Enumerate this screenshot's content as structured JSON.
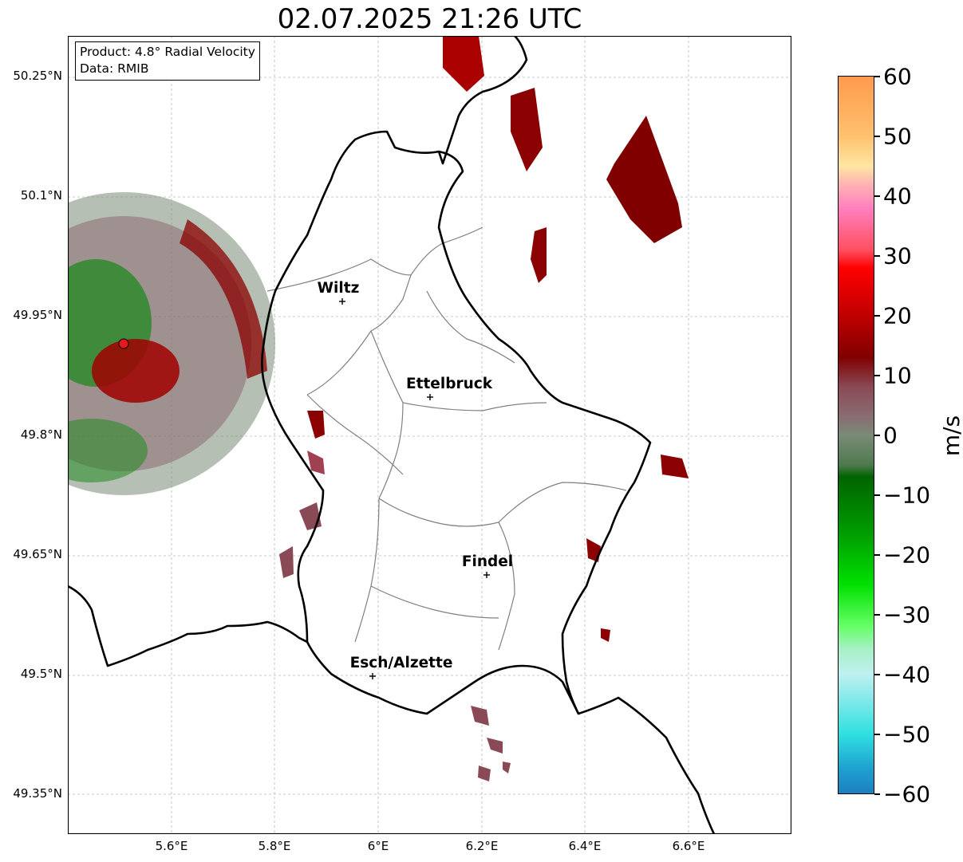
{
  "title": "02.07.2025 21:26 UTC",
  "info_box": {
    "line1": "Product: 4.8° Radial Velocity",
    "line2": "Data: RMIB"
  },
  "latitude_labels": [
    "50.25°N",
    "50.1°N",
    "49.95°N",
    "49.8°N",
    "49.65°N",
    "49.5°N",
    "49.35°N"
  ],
  "longitude_labels": [
    "5.6°E",
    "5.8°E",
    "6°E",
    "6.2°E",
    "6.4°E",
    "6.6°E"
  ],
  "cities": [
    {
      "name": "Wiltz"
    },
    {
      "name": "Ettelbruck"
    },
    {
      "name": "Findel"
    },
    {
      "name": "Esch/Alzette"
    }
  ],
  "colorbar": {
    "unit": "m/s",
    "ticks": [
      "60",
      "50",
      "40",
      "30",
      "20",
      "10",
      "0",
      "−10",
      "−20",
      "−30",
      "−40",
      "−50",
      "−60"
    ],
    "range": [
      -60,
      60
    ]
  },
  "chart_data": {
    "type": "heatmap",
    "title": "02.07.2025 21:26 UTC",
    "product": "4.8° Radial Velocity",
    "source": "RMIB",
    "lon_range": [
      5.4,
      6.8
    ],
    "lat_range": [
      49.3,
      50.3
    ],
    "colorbar_label": "m/s",
    "colorbar_range": [
      -60,
      60
    ],
    "grid": true
  },
  "colors": {
    "border": "#000000",
    "canton": "#808080",
    "radar_site": "#e41a1c"
  }
}
